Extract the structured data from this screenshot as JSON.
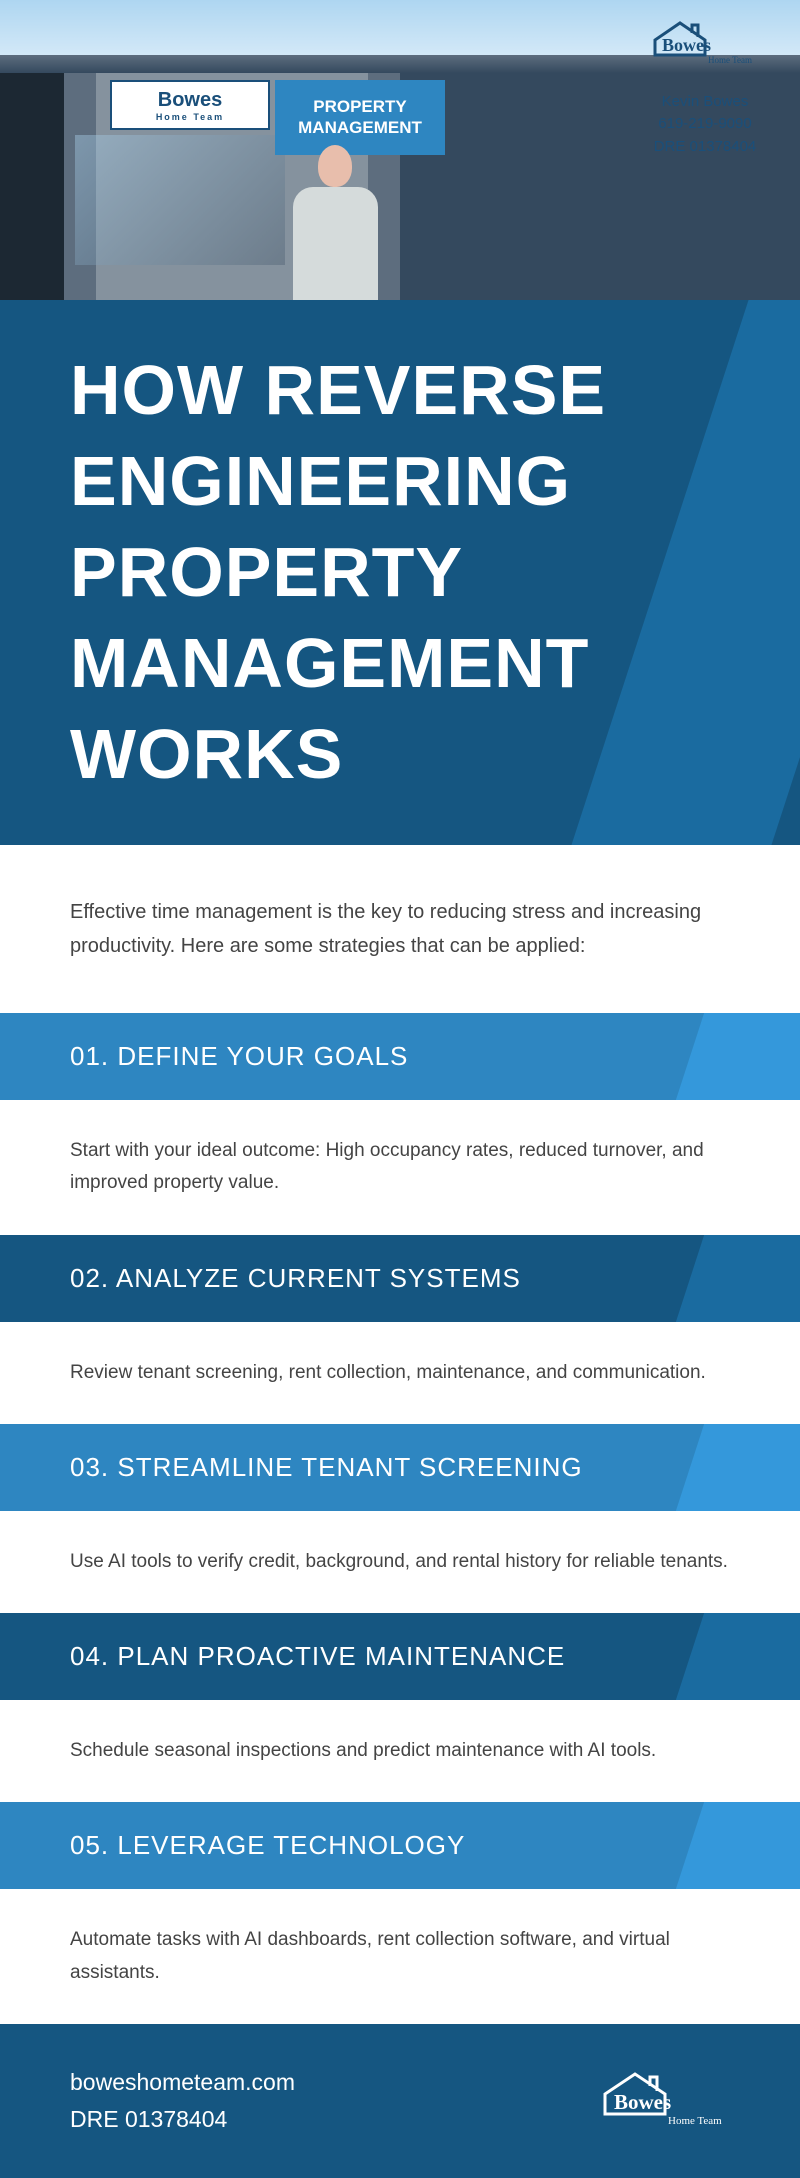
{
  "hero": {
    "sign_logo_main": "Bowes",
    "sign_logo_sub": "Home Team",
    "sign_pm_line1": "PROPERTY",
    "sign_pm_line2": "MANAGEMENT",
    "contact_name": "Kevin Bowes",
    "contact_phone": "619-219-9090",
    "contact_dre": "DRE 01378404"
  },
  "title": "HOW REVERSE ENGINEERING PROPERTY MANAGEMENT WORKS",
  "intro": "Effective time management is the key to reducing stress and increasing productivity. Here are some strategies that can be applied:",
  "steps": [
    {
      "num": "01.",
      "title": "DEFINE YOUR GOALS",
      "body": "Start with your ideal outcome: High occupancy rates, reduced turnover, and improved property value.",
      "tone": "light"
    },
    {
      "num": "02.",
      "title": "ANALYZE CURRENT SYSTEMS",
      "body": "Review tenant screening, rent collection, maintenance, and communication.",
      "tone": "dark"
    },
    {
      "num": "03.",
      "title": "STREAMLINE TENANT SCREENING",
      "body": "Use AI tools to verify credit, background, and rental history for reliable tenants.",
      "tone": "light"
    },
    {
      "num": "04.",
      "title": "PLAN PROACTIVE MAINTENANCE",
      "body": "Schedule seasonal inspections and predict maintenance with AI tools.",
      "tone": "dark"
    },
    {
      "num": "05.",
      "title": "LEVERAGE TECHNOLOGY",
      "body": "Automate tasks with AI dashboards, rent collection software, and virtual assistants.",
      "tone": "light"
    }
  ],
  "footer": {
    "website": "boweshometeam.com",
    "dre": "DRE 01378404",
    "logo_main": "Bowes",
    "logo_sub": "Home Team"
  },
  "colors": {
    "dark_blue": "#155681",
    "mid_blue": "#1a6ba0",
    "light_blue": "#2e86c1",
    "lighter_blue": "#3498db",
    "text": "#444444",
    "white": "#ffffff"
  }
}
